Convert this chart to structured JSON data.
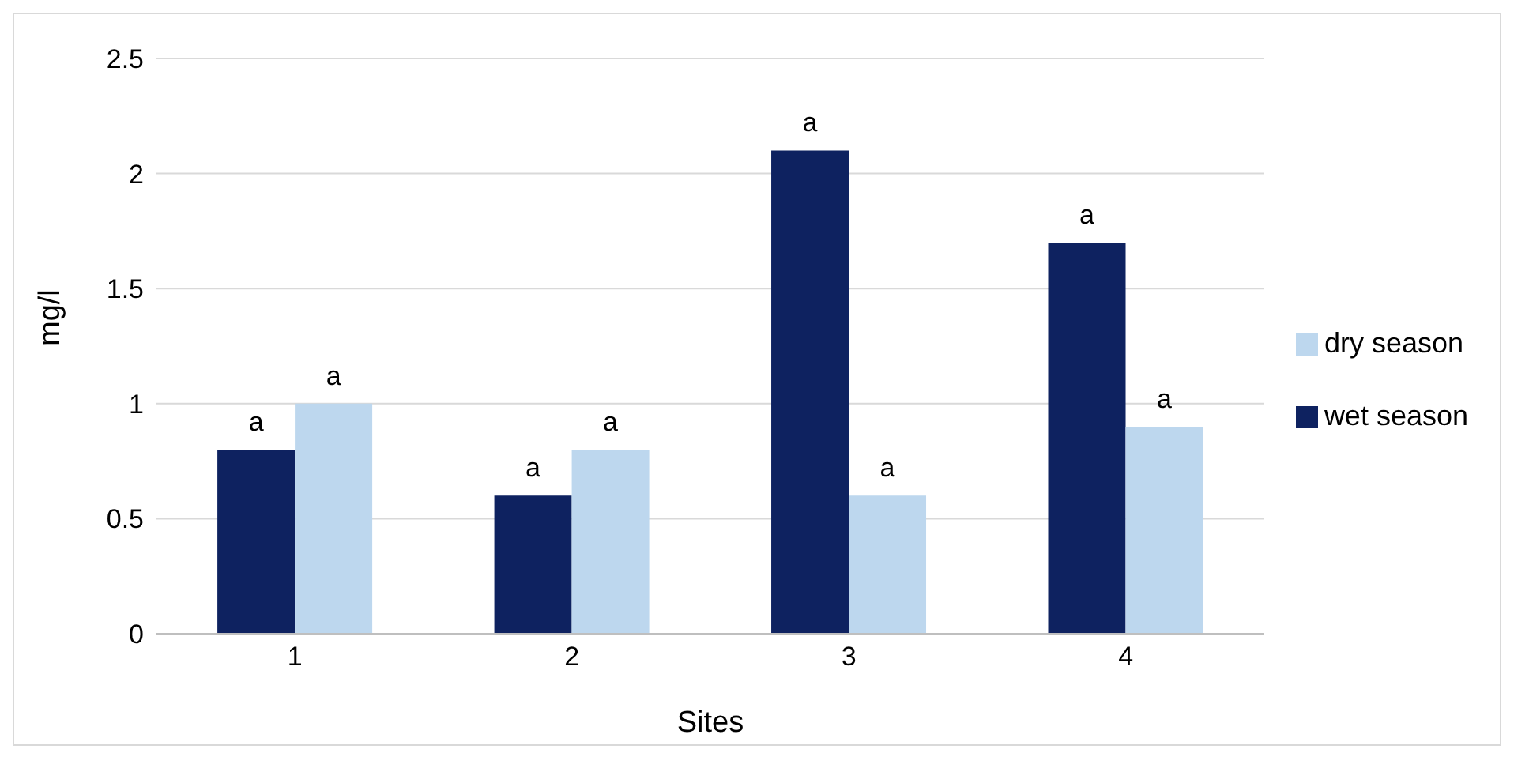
{
  "chart_data": {
    "type": "bar",
    "xlabel": "Sites",
    "ylabel": "mg/l",
    "categories": [
      "1",
      "2",
      "3",
      "4"
    ],
    "series": [
      {
        "name": "wet season",
        "color": "#0e2260",
        "values": [
          0.8,
          0.6,
          2.1,
          1.7
        ],
        "value_labels": [
          "a",
          "a",
          "a",
          "a"
        ]
      },
      {
        "name": "dry season",
        "color": "#bdd7ee",
        "values": [
          1.0,
          0.8,
          0.6,
          0.9
        ],
        "value_labels": [
          "a",
          "a",
          "a",
          "a"
        ]
      }
    ],
    "ylim": [
      0,
      2.5
    ],
    "yticks": [
      0,
      0.5,
      1,
      1.5,
      2,
      2.5
    ],
    "grid": "y",
    "legend": "right"
  }
}
